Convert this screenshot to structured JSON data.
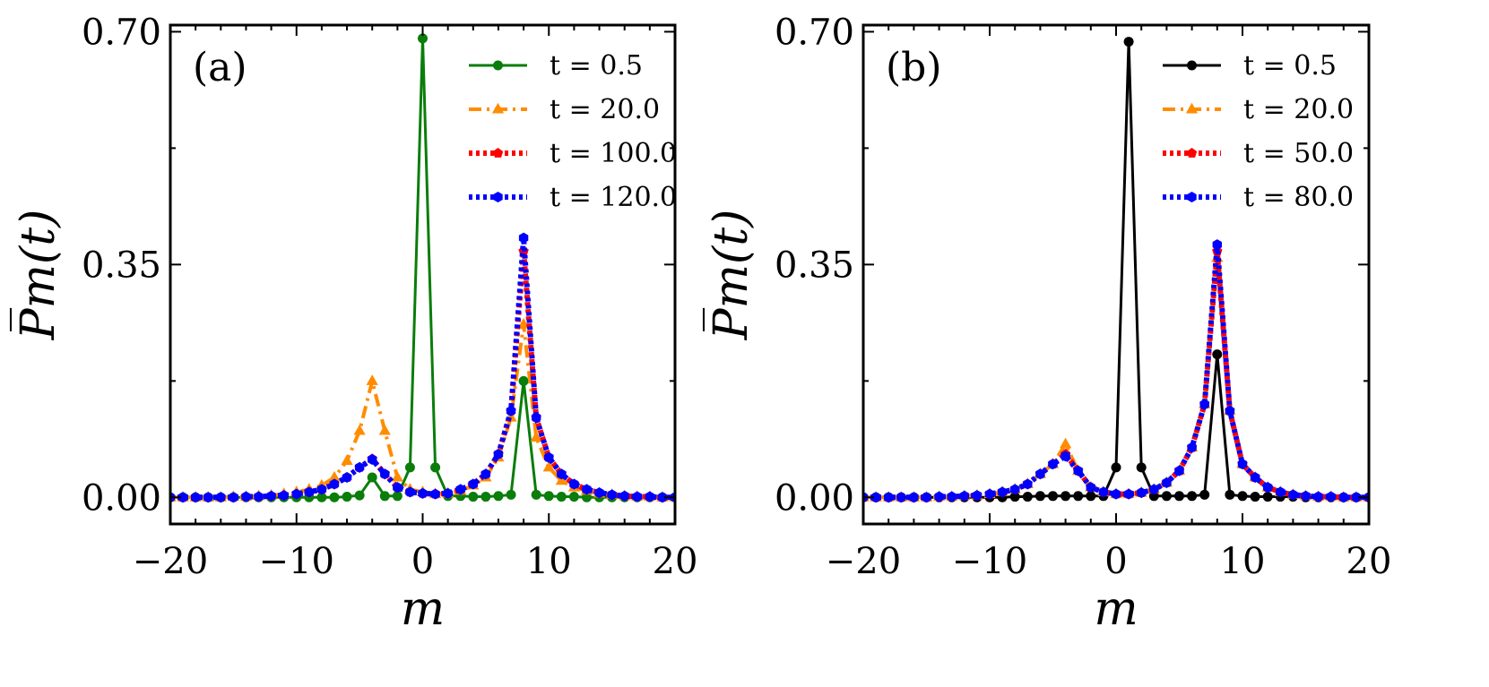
{
  "chart_data": [
    {
      "type": "line",
      "panel_label": "(a)",
      "xlabel": "m",
      "ylabel": "P̅m(t)",
      "xlim": [
        -20,
        20
      ],
      "ylim": [
        -0.04,
        0.71
      ],
      "xticks": [
        -20,
        -10,
        0,
        10,
        20
      ],
      "xtick_labels": [
        "−20",
        "−10",
        "0",
        "10",
        "20"
      ],
      "yticks": [
        0.0,
        0.35,
        0.7
      ],
      "ytick_labels": [
        "0.00",
        "0.35",
        "0.70"
      ],
      "grid": false,
      "legend_position": "top-right",
      "x": [
        -20,
        -19,
        -18,
        -17,
        -16,
        -15,
        -14,
        -13,
        -12,
        -11,
        -10,
        -9,
        -8,
        -7,
        -6,
        -5,
        -4,
        -3,
        -2,
        -1,
        0,
        1,
        2,
        3,
        4,
        5,
        6,
        7,
        8,
        9,
        10,
        11,
        12,
        13,
        14,
        15,
        16,
        17,
        18,
        19,
        20
      ],
      "series": [
        {
          "name": "t = 0.5",
          "color": "#0a7d0a",
          "style": "solid",
          "marker": "circle",
          "values": [
            0,
            0,
            0,
            0,
            0,
            0,
            0,
            0,
            0,
            0,
            0,
            0,
            0,
            0,
            0.001,
            0.003,
            0.03,
            0.002,
            0.002,
            0.045,
            0.69,
            0.045,
            0.002,
            0.002,
            0.001,
            0.001,
            0.002,
            0.004,
            0.175,
            0.004,
            0.002,
            0.001,
            0.001,
            0,
            0,
            0,
            0,
            0,
            0,
            0,
            0
          ]
        },
        {
          "name": "t = 20.0",
          "color": "#ff8c00",
          "style": "dashdot",
          "marker": "triangle",
          "values": [
            0,
            0,
            0,
            0,
            0,
            0.001,
            0.001,
            0.002,
            0.003,
            0.005,
            0.008,
            0.012,
            0.018,
            0.03,
            0.055,
            0.1,
            0.175,
            0.1,
            0.03,
            0.012,
            0.008,
            0.005,
            0.006,
            0.01,
            0.018,
            0.03,
            0.06,
            0.12,
            0.26,
            0.09,
            0.045,
            0.025,
            0.015,
            0.01,
            0.006,
            0.004,
            0.002,
            0.001,
            0.001,
            0,
            0
          ]
        },
        {
          "name": "t = 100.0",
          "color": "#ff0000",
          "style": "dotted",
          "marker": "pentagon",
          "values": [
            0,
            0,
            0,
            0,
            0,
            0,
            0.001,
            0.001,
            0.002,
            0.003,
            0.005,
            0.008,
            0.012,
            0.02,
            0.03,
            0.045,
            0.058,
            0.035,
            0.015,
            0.008,
            0.006,
            0.005,
            0.006,
            0.012,
            0.02,
            0.035,
            0.065,
            0.13,
            0.37,
            0.12,
            0.06,
            0.035,
            0.02,
            0.012,
            0.007,
            0.004,
            0.002,
            0.001,
            0.001,
            0,
            0
          ]
        },
        {
          "name": "t = 120.0",
          "color": "#0000ff",
          "style": "dotted",
          "marker": "hexagon",
          "values": [
            0,
            0,
            0,
            0,
            0,
            0,
            0.001,
            0.001,
            0.002,
            0.003,
            0.005,
            0.008,
            0.012,
            0.02,
            0.03,
            0.045,
            0.057,
            0.035,
            0.015,
            0.008,
            0.006,
            0.005,
            0.006,
            0.012,
            0.02,
            0.035,
            0.065,
            0.13,
            0.39,
            0.12,
            0.06,
            0.035,
            0.02,
            0.012,
            0.007,
            0.004,
            0.002,
            0.001,
            0.001,
            0,
            0
          ]
        }
      ]
    },
    {
      "type": "line",
      "panel_label": "(b)",
      "xlabel": "m",
      "ylabel": "P̅m(t)",
      "xlim": [
        -20,
        20
      ],
      "ylim": [
        -0.04,
        0.71
      ],
      "xticks": [
        -20,
        -10,
        0,
        10,
        20
      ],
      "xtick_labels": [
        "−20",
        "−10",
        "0",
        "10",
        "20"
      ],
      "yticks": [
        0.0,
        0.35,
        0.7
      ],
      "ytick_labels": [
        "0.00",
        "0.35",
        "0.70"
      ],
      "grid": false,
      "legend_position": "top-right",
      "x": [
        -20,
        -19,
        -18,
        -17,
        -16,
        -15,
        -14,
        -13,
        -12,
        -11,
        -10,
        -9,
        -8,
        -7,
        -6,
        -5,
        -4,
        -3,
        -2,
        -1,
        0,
        1,
        2,
        3,
        4,
        5,
        6,
        7,
        8,
        9,
        10,
        11,
        12,
        13,
        14,
        15,
        16,
        17,
        18,
        19,
        20
      ],
      "series": [
        {
          "name": "t = 0.5",
          "color": "#000000",
          "style": "solid",
          "marker": "circle",
          "values": [
            0,
            0,
            0,
            0,
            0,
            0,
            0,
            0,
            0,
            0,
            0,
            0,
            0.001,
            0.001,
            0.002,
            0.002,
            0.002,
            0.002,
            0.002,
            0.002,
            0.045,
            0.685,
            0.045,
            0.002,
            0.002,
            0.002,
            0.002,
            0.004,
            0.215,
            0.004,
            0.002,
            0.001,
            0.001,
            0.001,
            0.001,
            0,
            0,
            0,
            0,
            0,
            0
          ]
        },
        {
          "name": "t = 20.0",
          "color": "#ff8c00",
          "style": "dashdot",
          "marker": "triangle",
          "values": [
            0,
            0,
            0,
            0,
            0,
            0,
            0.001,
            0.001,
            0.002,
            0.003,
            0.005,
            0.008,
            0.012,
            0.02,
            0.035,
            0.05,
            0.08,
            0.04,
            0.015,
            0.008,
            0.005,
            0.005,
            0.007,
            0.012,
            0.022,
            0.04,
            0.075,
            0.14,
            0.36,
            0.13,
            0.05,
            0.03,
            0.015,
            0.008,
            0.004,
            0.002,
            0.001,
            0.001,
            0,
            0,
            0
          ]
        },
        {
          "name": "t = 50.0",
          "color": "#ff0000",
          "style": "dotted",
          "marker": "pentagon",
          "values": [
            0,
            0,
            0,
            0,
            0,
            0,
            0.001,
            0.001,
            0.002,
            0.003,
            0.005,
            0.008,
            0.012,
            0.02,
            0.035,
            0.05,
            0.065,
            0.04,
            0.015,
            0.008,
            0.005,
            0.005,
            0.007,
            0.012,
            0.022,
            0.04,
            0.075,
            0.14,
            0.37,
            0.13,
            0.05,
            0.03,
            0.015,
            0.008,
            0.004,
            0.002,
            0.001,
            0.001,
            0,
            0,
            0
          ]
        },
        {
          "name": "t = 80.0",
          "color": "#0000ff",
          "style": "dotted",
          "marker": "hexagon",
          "values": [
            0,
            0,
            0,
            0,
            0,
            0,
            0.001,
            0.001,
            0.002,
            0.003,
            0.005,
            0.008,
            0.012,
            0.02,
            0.035,
            0.05,
            0.062,
            0.04,
            0.015,
            0.008,
            0.005,
            0.005,
            0.007,
            0.012,
            0.022,
            0.04,
            0.075,
            0.14,
            0.38,
            0.13,
            0.05,
            0.03,
            0.015,
            0.008,
            0.004,
            0.002,
            0.001,
            0.001,
            0,
            0,
            0
          ]
        }
      ]
    }
  ]
}
